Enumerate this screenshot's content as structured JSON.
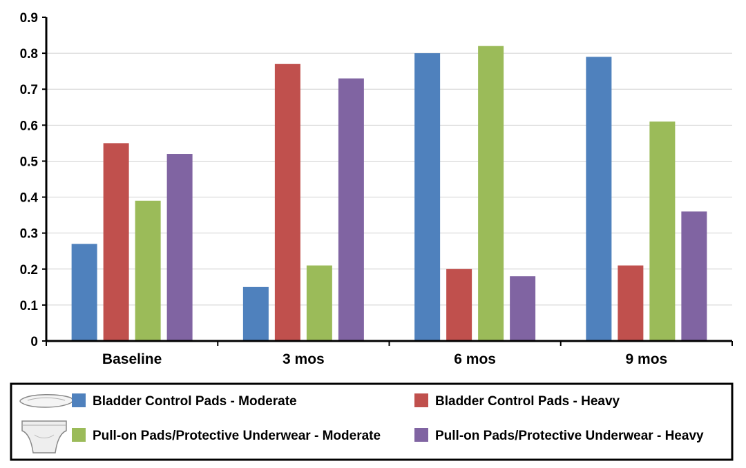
{
  "chart_data": {
    "type": "bar",
    "categories": [
      "Baseline",
      "3 mos",
      "6 mos",
      "9 mos"
    ],
    "series": [
      {
        "name": "Bladder Control Pads - Moderate",
        "color": "#4f81bd",
        "values": [
          0.27,
          0.15,
          0.8,
          0.79
        ]
      },
      {
        "name": "Bladder Control Pads - Heavy",
        "color": "#c0504d",
        "values": [
          0.55,
          0.77,
          0.2,
          0.21
        ]
      },
      {
        "name": "Pull-on Pads/Protective Underwear - Moderate",
        "color": "#9bbb59",
        "values": [
          0.39,
          0.21,
          0.82,
          0.61
        ]
      },
      {
        "name": "Pull-on Pads/Protective Underwear - Heavy",
        "color": "#8064a2",
        "values": [
          0.52,
          0.73,
          0.18,
          0.36
        ]
      }
    ],
    "yticks": [
      "0",
      "0.1",
      "0.2",
      "0.3",
      "0.4",
      "0.5",
      "0.6",
      "0.7",
      "0.8",
      "0.9"
    ],
    "ylim": [
      0,
      0.9
    ],
    "grid": true,
    "legend_position": "bottom",
    "legend_icons": [
      "pad-icon",
      "underwear-icon"
    ],
    "title": "",
    "xlabel": "",
    "ylabel": ""
  }
}
